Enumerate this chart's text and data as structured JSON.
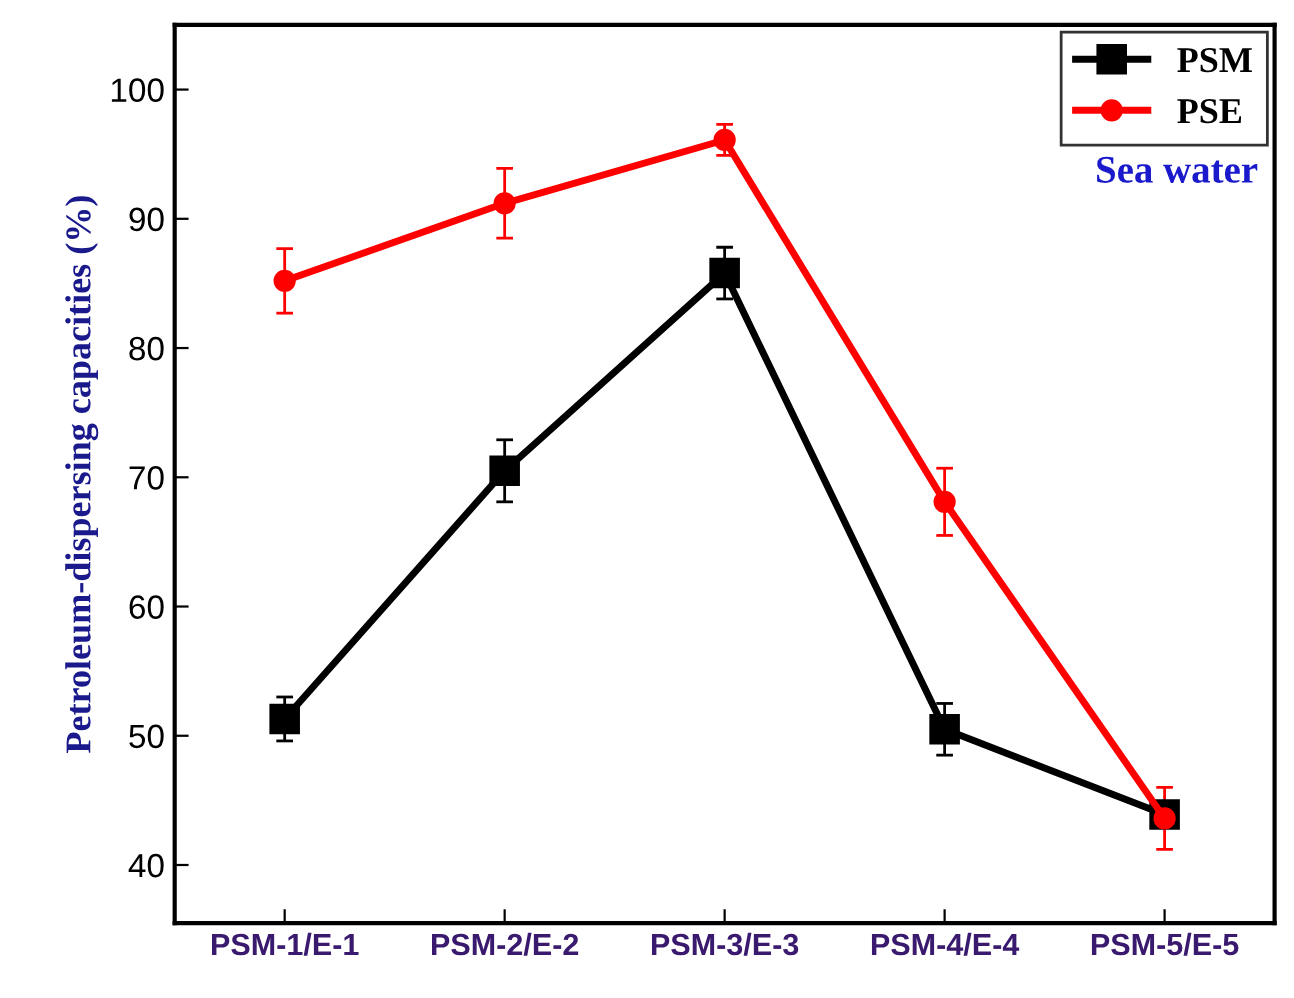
{
  "chart_data": {
    "type": "line",
    "ylabel": "Petroleum-dispersing capacities (%)",
    "categories": [
      "PSM-1/E-1",
      "PSM-2/E-2",
      "PSM-3/E-3",
      "PSM-4/E-4",
      "PSM-5/E-5"
    ],
    "series": [
      {
        "name": "PSM",
        "color": "#000000",
        "marker": "square",
        "values": [
          51.3,
          70.5,
          85.8,
          50.5,
          43.9
        ],
        "errors": [
          1.7,
          2.4,
          2.0,
          2.0,
          0.8
        ]
      },
      {
        "name": "PSE",
        "color": "#ff0000",
        "marker": "circle",
        "values": [
          85.2,
          91.2,
          96.1,
          68.1,
          43.6
        ],
        "errors": [
          2.5,
          2.7,
          1.2,
          2.6,
          2.4
        ]
      }
    ],
    "ylim": [
      35.5,
      105
    ],
    "yticks": [
      40,
      50,
      60,
      70,
      80,
      90,
      100
    ],
    "legend": "top right",
    "grid": false,
    "line_style": "solid",
    "annotations": [
      "Sea water"
    ]
  }
}
